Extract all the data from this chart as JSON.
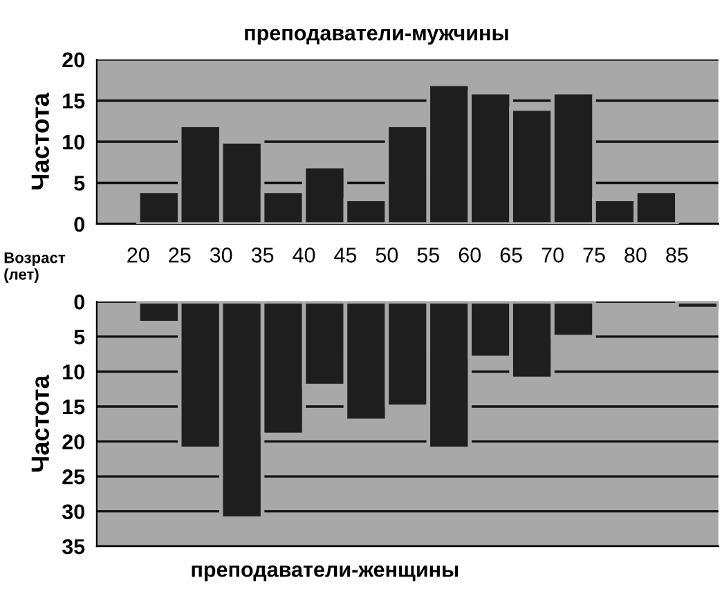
{
  "chart_data": [
    {
      "type": "histogram",
      "title": "преподаватели-мужчины",
      "ylabel": "Частота",
      "xlabel": "Возраст\n(лет)",
      "bins": [
        15,
        20,
        25,
        30,
        35,
        40,
        45,
        50,
        55,
        60,
        65,
        70,
        75,
        80,
        85,
        90
      ],
      "values": [
        0,
        4,
        12,
        10,
        4,
        7,
        3,
        12,
        17,
        16,
        14,
        16,
        3,
        4,
        0
      ],
      "color": "#1e1e1e",
      "xlim": [
        15,
        90
      ],
      "xticks": [
        20,
        25,
        30,
        35,
        40,
        45,
        50,
        55,
        60,
        65,
        70,
        75,
        80,
        85
      ],
      "ylim": [
        0,
        20
      ],
      "yticks": [
        0,
        5,
        10,
        15,
        20
      ],
      "grid": "y"
    },
    {
      "type": "histogram",
      "title": "преподаватели-женщины",
      "ylabel": "Частота",
      "bins": [
        15,
        20,
        25,
        30,
        35,
        40,
        45,
        50,
        55,
        60,
        65,
        70,
        75,
        80,
        85,
        90
      ],
      "values": [
        0,
        3,
        21,
        31,
        19,
        12,
        17,
        15,
        21,
        8,
        11,
        5,
        0,
        0,
        1
      ],
      "color": "#1e1e1e",
      "xlim": [
        15,
        90
      ],
      "ylim": [
        35,
        0
      ],
      "yticks": [
        0,
        5,
        10,
        15,
        20,
        25,
        30,
        35
      ],
      "grid": "y",
      "tick_labels": "y"
    }
  ]
}
